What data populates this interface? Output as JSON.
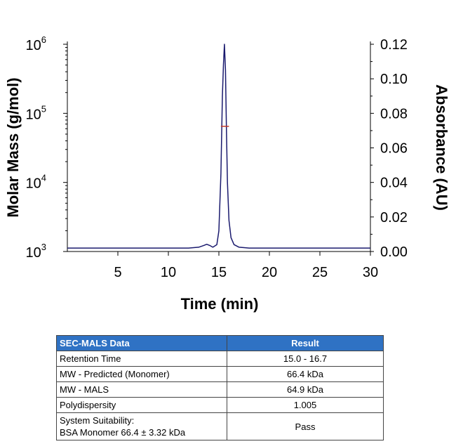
{
  "chart_data": {
    "type": "line",
    "xlabel": "Time (min)",
    "ylabel_left": "Molar Mass (g/mol)",
    "ylabel_right": "Absorbance (AU)",
    "xlim": [
      0,
      30
    ],
    "x_ticks": [
      "5",
      "10",
      "15",
      "20",
      "25",
      "30"
    ],
    "y_left_scale": "log",
    "y_left_ticks": [
      {
        "base": "10",
        "exp": "3"
      },
      {
        "base": "10",
        "exp": "4"
      },
      {
        "base": "10",
        "exp": "5"
      },
      {
        "base": "10",
        "exp": "6"
      }
    ],
    "ylim_left": [
      1000,
      1000000
    ],
    "y_right_ticks": [
      "0.00",
      "0.02",
      "0.04",
      "0.06",
      "0.08",
      "0.10",
      "0.12"
    ],
    "ylim_right": [
      0,
      0.12
    ],
    "absorbance_color": "#1a1a6e",
    "molar_mass_color": "#c0392b",
    "series": [
      {
        "x": [
          0,
          2,
          4,
          6,
          8,
          10,
          12,
          13,
          13.5,
          13.8,
          14.1,
          14.4,
          14.8,
          15.0,
          15.2,
          15.35,
          15.45,
          15.55,
          15.65,
          15.75,
          15.85,
          16.0,
          16.2,
          16.5,
          17,
          18,
          20,
          22,
          25,
          28,
          30
        ],
        "y": [
          0.002,
          0.002,
          0.002,
          0.002,
          0.002,
          0.002,
          0.002,
          0.0025,
          0.0035,
          0.0042,
          0.0035,
          0.0025,
          0.004,
          0.012,
          0.045,
          0.09,
          0.108,
          0.12,
          0.105,
          0.07,
          0.04,
          0.018,
          0.008,
          0.004,
          0.0025,
          0.002,
          0.002,
          0.002,
          0.002,
          0.002,
          0.002
        ]
      },
      {
        "x": [
          15.2,
          15.4,
          15.6,
          15.8,
          16.0
        ],
        "y": [
          65000,
          65000,
          64900,
          64800,
          64900
        ]
      }
    ]
  },
  "table": {
    "headers": [
      "SEC-MALS Data",
      "Result"
    ],
    "rows": [
      {
        "label": "Retention Time",
        "value": "15.0 - 16.7"
      },
      {
        "label": "MW - Predicted (Monomer)",
        "value": "66.4 kDa"
      },
      {
        "label": "MW - MALS",
        "value": "64.9 kDa"
      },
      {
        "label": "Polydispersity",
        "value": "1.005"
      }
    ],
    "last_row": {
      "label_line1": "System Suitability:",
      "label_line2": "BSA Monomer 66.4 ± 3.32 kDa",
      "value": "Pass"
    }
  }
}
